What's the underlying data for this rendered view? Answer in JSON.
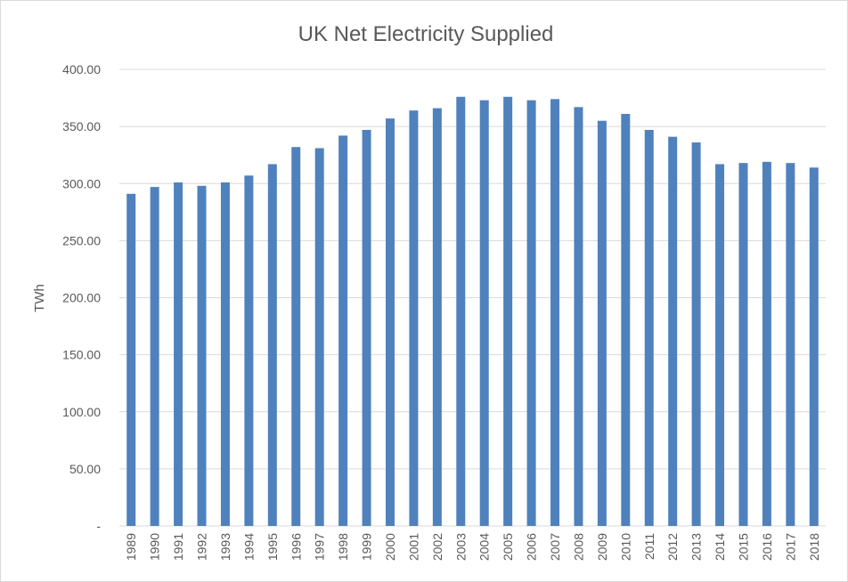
{
  "chart_data": {
    "type": "bar",
    "title": "UK Net Electricity Supplied",
    "xlabel": "",
    "ylabel": "TWh",
    "ylim": [
      0,
      400
    ],
    "yticks": [
      0,
      50,
      100,
      150,
      200,
      250,
      300,
      350,
      400
    ],
    "ytick_labels": [
      "-",
      "50.00",
      "100.00",
      "150.00",
      "200.00",
      "250.00",
      "300.00",
      "350.00",
      "400.00"
    ],
    "grid": true,
    "legend": "none",
    "bar_color": "#4f81bd",
    "categories": [
      "1989",
      "1990",
      "1991",
      "1992",
      "1993",
      "1994",
      "1995",
      "1996",
      "1997",
      "1998",
      "1999",
      "2000",
      "2001",
      "2002",
      "2003",
      "2004",
      "2005",
      "2006",
      "2007",
      "2008",
      "2009",
      "2010",
      "2011",
      "2012",
      "2013",
      "2014",
      "2015",
      "2016",
      "2017",
      "2018"
    ],
    "values": [
      291,
      297,
      301,
      298,
      301,
      307,
      317,
      332,
      331,
      342,
      347,
      357,
      364,
      366,
      376,
      373,
      376,
      373,
      374,
      367,
      355,
      361,
      347,
      341,
      336,
      317,
      318,
      319,
      318,
      314
    ]
  }
}
